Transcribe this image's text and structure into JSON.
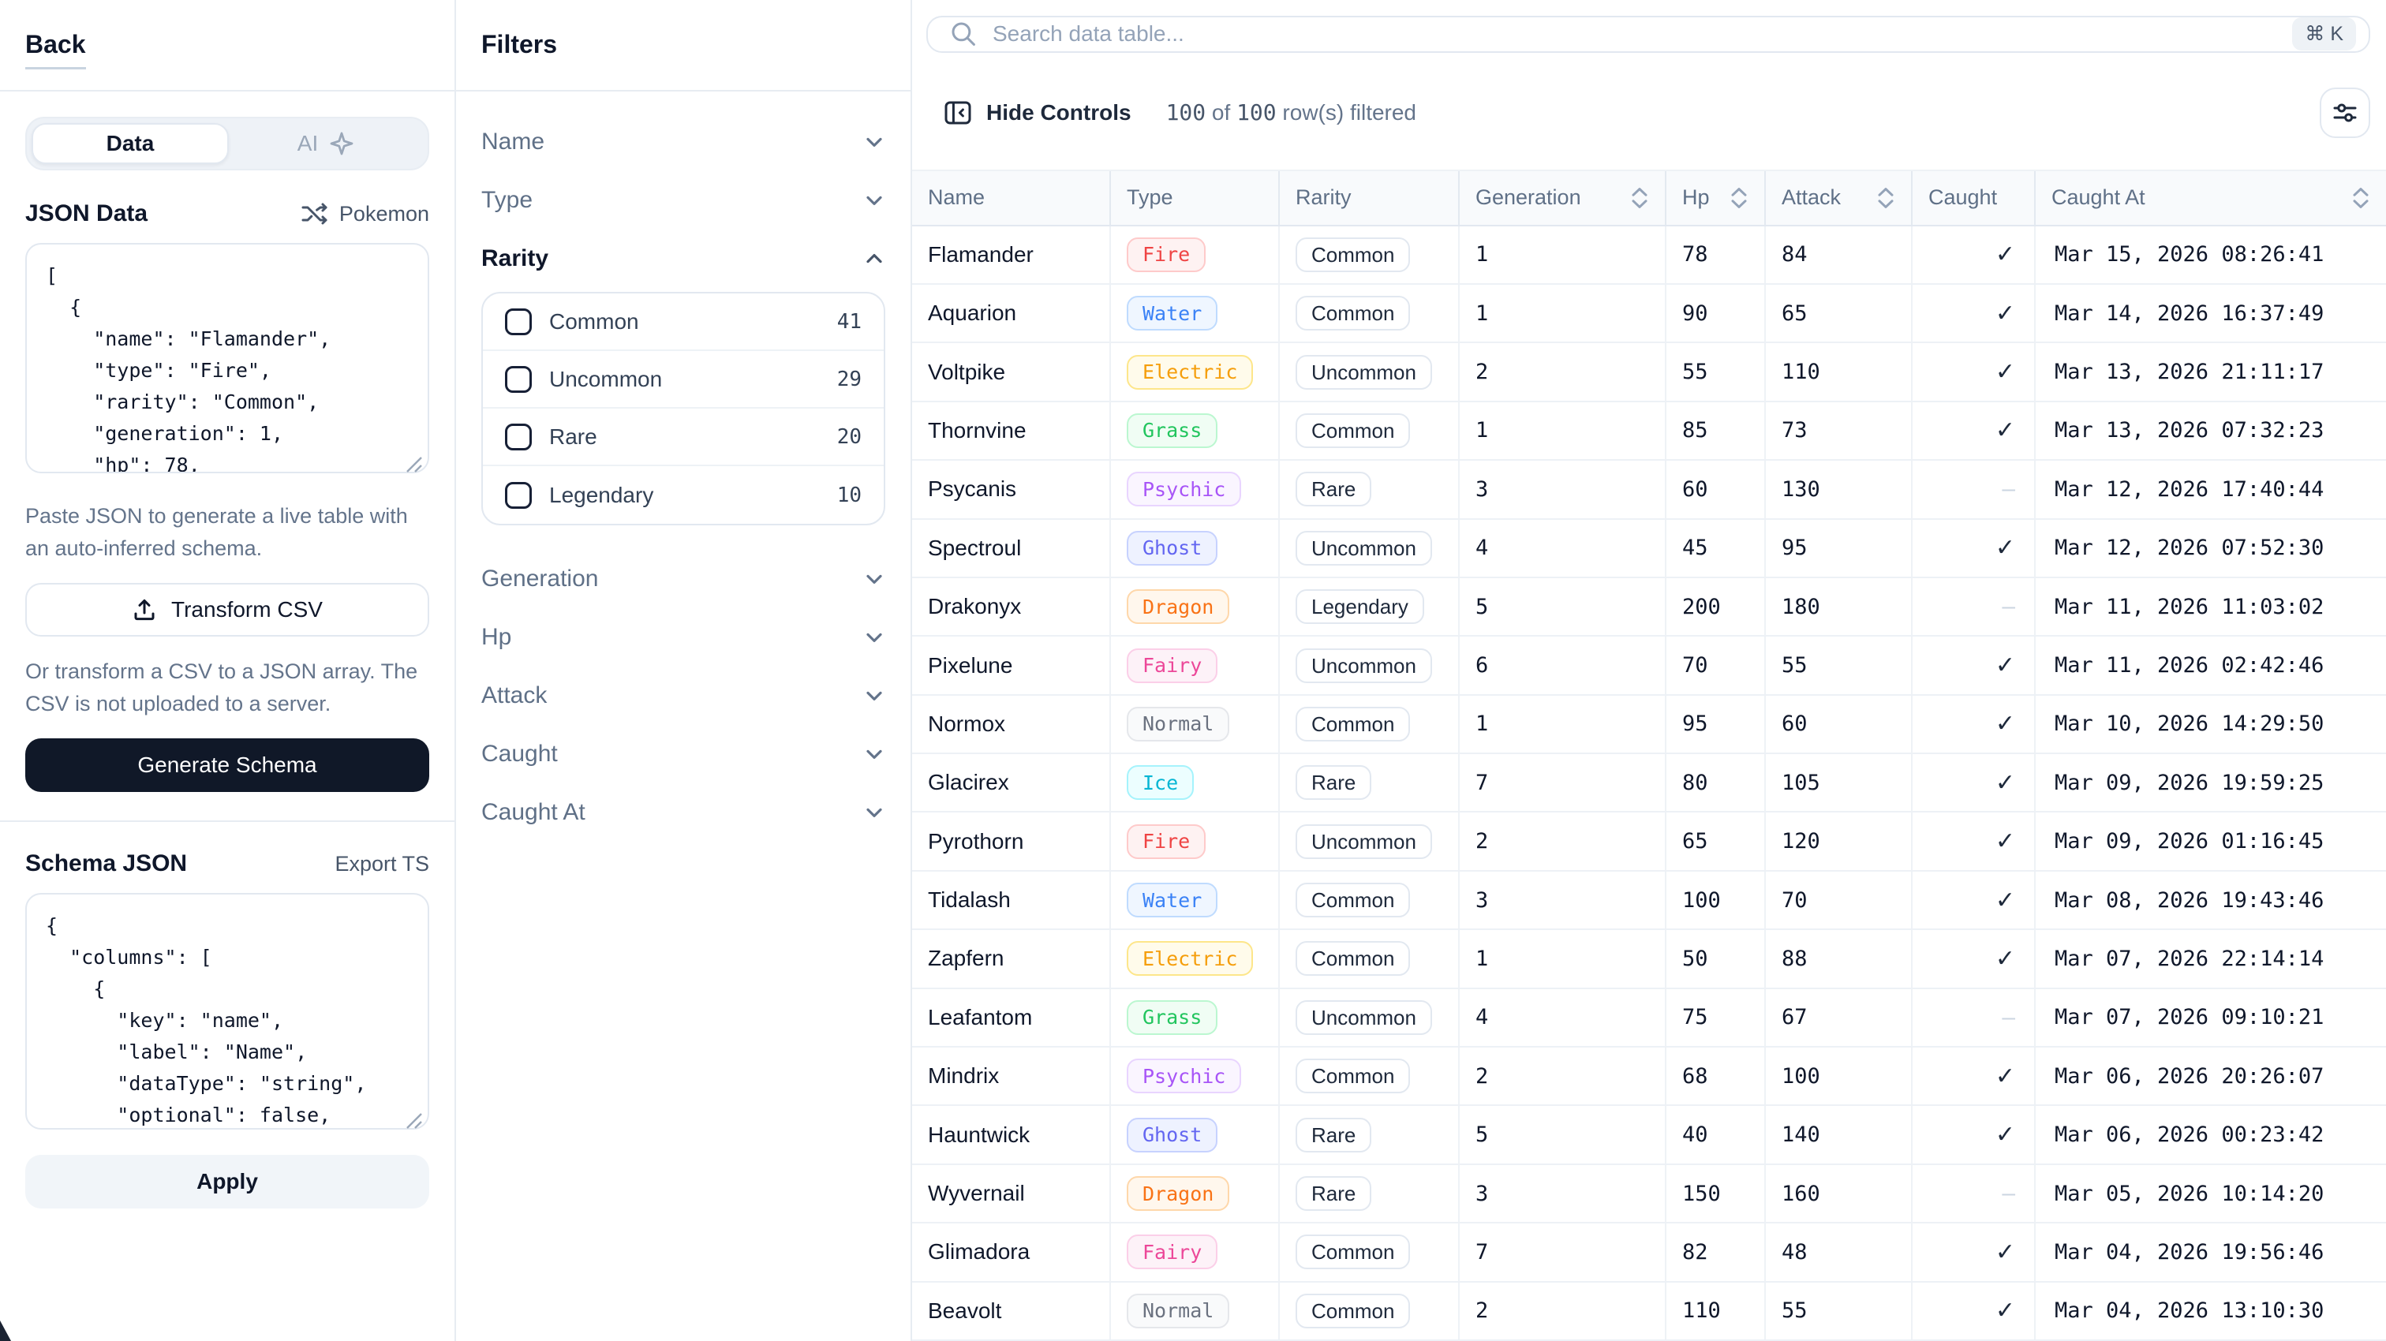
{
  "left_panel": {
    "back_label": "Back",
    "tabs": {
      "data": "Data",
      "ai": "AI"
    },
    "json_data_label": "JSON Data",
    "dataset_label": "Pokemon",
    "json_textarea": "[\n  {\n    \"name\": \"Flamander\",\n    \"type\": \"Fire\",\n    \"rarity\": \"Common\",\n    \"generation\": 1,\n    \"hp\": 78,",
    "paste_help": "Paste JSON to generate a live table with an auto-inferred schema.",
    "transform_csv_label": "Transform CSV",
    "csv_help": "Or transform a CSV to a JSON array. The CSV is not uploaded to a server.",
    "generate_schema_label": "Generate Schema",
    "schema_json_label": "Schema JSON",
    "export_ts_label": "Export TS",
    "schema_textarea": "{\n  \"columns\": [\n    {\n      \"key\": \"name\",\n      \"label\": \"Name\",\n      \"dataType\": \"string\",\n      \"optional\": false,",
    "apply_label": "Apply"
  },
  "filters": {
    "title": "Filters",
    "sections_top": [
      {
        "label": "Name"
      },
      {
        "label": "Type"
      }
    ],
    "rarity": {
      "label": "Rarity",
      "options": [
        {
          "label": "Common",
          "count": "41"
        },
        {
          "label": "Uncommon",
          "count": "29"
        },
        {
          "label": "Rare",
          "count": "20"
        },
        {
          "label": "Legendary",
          "count": "10"
        }
      ]
    },
    "sections_bottom": [
      {
        "label": "Generation"
      },
      {
        "label": "Hp"
      },
      {
        "label": "Attack"
      },
      {
        "label": "Caught"
      },
      {
        "label": "Caught At"
      }
    ]
  },
  "toolbar": {
    "search_placeholder": "Search data table...",
    "shortcut": "⌘ K",
    "hide_controls_label": "Hide Controls",
    "status": {
      "filtered": "100",
      "of": "of",
      "total": "100",
      "suffix": "row(s) filtered"
    }
  },
  "table": {
    "columns": [
      {
        "label": "Name",
        "sortable": false
      },
      {
        "label": "Type",
        "sortable": false
      },
      {
        "label": "Rarity",
        "sortable": false
      },
      {
        "label": "Generation",
        "sortable": true
      },
      {
        "label": "Hp",
        "sortable": true
      },
      {
        "label": "Attack",
        "sortable": true
      },
      {
        "label": "Caught",
        "sortable": false
      },
      {
        "label": "Caught At",
        "sortable": true
      }
    ],
    "rows": [
      {
        "name": "Flamander",
        "type": "Fire",
        "rarity": "Common",
        "generation": "1",
        "hp": "78",
        "attack": "84",
        "caught": true,
        "caught_at": "Mar 15, 2026 08:26:41"
      },
      {
        "name": "Aquarion",
        "type": "Water",
        "rarity": "Common",
        "generation": "1",
        "hp": "90",
        "attack": "65",
        "caught": true,
        "caught_at": "Mar 14, 2026 16:37:49"
      },
      {
        "name": "Voltpike",
        "type": "Electric",
        "rarity": "Uncommon",
        "generation": "2",
        "hp": "55",
        "attack": "110",
        "caught": true,
        "caught_at": "Mar 13, 2026 21:11:17"
      },
      {
        "name": "Thornvine",
        "type": "Grass",
        "rarity": "Common",
        "generation": "1",
        "hp": "85",
        "attack": "73",
        "caught": true,
        "caught_at": "Mar 13, 2026 07:32:23"
      },
      {
        "name": "Psycanis",
        "type": "Psychic",
        "rarity": "Rare",
        "generation": "3",
        "hp": "60",
        "attack": "130",
        "caught": false,
        "caught_at": "Mar 12, 2026 17:40:44"
      },
      {
        "name": "Spectroul",
        "type": "Ghost",
        "rarity": "Uncommon",
        "generation": "4",
        "hp": "45",
        "attack": "95",
        "caught": true,
        "caught_at": "Mar 12, 2026 07:52:30"
      },
      {
        "name": "Drakonyx",
        "type": "Dragon",
        "rarity": "Legendary",
        "generation": "5",
        "hp": "200",
        "attack": "180",
        "caught": false,
        "caught_at": "Mar 11, 2026 11:03:02"
      },
      {
        "name": "Pixelune",
        "type": "Fairy",
        "rarity": "Uncommon",
        "generation": "6",
        "hp": "70",
        "attack": "55",
        "caught": true,
        "caught_at": "Mar 11, 2026 02:42:46"
      },
      {
        "name": "Normox",
        "type": "Normal",
        "rarity": "Common",
        "generation": "1",
        "hp": "95",
        "attack": "60",
        "caught": true,
        "caught_at": "Mar 10, 2026 14:29:50"
      },
      {
        "name": "Glacirex",
        "type": "Ice",
        "rarity": "Rare",
        "generation": "7",
        "hp": "80",
        "attack": "105",
        "caught": true,
        "caught_at": "Mar 09, 2026 19:59:25"
      },
      {
        "name": "Pyrothorn",
        "type": "Fire",
        "rarity": "Uncommon",
        "generation": "2",
        "hp": "65",
        "attack": "120",
        "caught": true,
        "caught_at": "Mar 09, 2026 01:16:45"
      },
      {
        "name": "Tidalash",
        "type": "Water",
        "rarity": "Common",
        "generation": "3",
        "hp": "100",
        "attack": "70",
        "caught": true,
        "caught_at": "Mar 08, 2026 19:43:46"
      },
      {
        "name": "Zapfern",
        "type": "Electric",
        "rarity": "Common",
        "generation": "1",
        "hp": "50",
        "attack": "88",
        "caught": true,
        "caught_at": "Mar 07, 2026 22:14:14"
      },
      {
        "name": "Leafantom",
        "type": "Grass",
        "rarity": "Uncommon",
        "generation": "4",
        "hp": "75",
        "attack": "67",
        "caught": false,
        "caught_at": "Mar 07, 2026 09:10:21"
      },
      {
        "name": "Mindrix",
        "type": "Psychic",
        "rarity": "Common",
        "generation": "2",
        "hp": "68",
        "attack": "100",
        "caught": true,
        "caught_at": "Mar 06, 2026 20:26:07"
      },
      {
        "name": "Hauntwick",
        "type": "Ghost",
        "rarity": "Rare",
        "generation": "5",
        "hp": "40",
        "attack": "140",
        "caught": true,
        "caught_at": "Mar 06, 2026 00:23:42"
      },
      {
        "name": "Wyvernail",
        "type": "Dragon",
        "rarity": "Rare",
        "generation": "3",
        "hp": "150",
        "attack": "160",
        "caught": false,
        "caught_at": "Mar 05, 2026 10:14:20"
      },
      {
        "name": "Glimadora",
        "type": "Fairy",
        "rarity": "Common",
        "generation": "7",
        "hp": "82",
        "attack": "48",
        "caught": true,
        "caught_at": "Mar 04, 2026 19:56:46"
      },
      {
        "name": "Beavolt",
        "type": "Normal",
        "rarity": "Common",
        "generation": "2",
        "hp": "110",
        "attack": "55",
        "caught": true,
        "caught_at": "Mar 04, 2026 13:10:30"
      }
    ]
  },
  "type_colors": {
    "Fire": {
      "bg": "#fef2f2",
      "border": "#fecaca",
      "text": "#ef4444"
    },
    "Water": {
      "bg": "#eff6ff",
      "border": "#bfdbfe",
      "text": "#3b82f6"
    },
    "Electric": {
      "bg": "#fffbeb",
      "border": "#fde68a",
      "text": "#f59e0b"
    },
    "Grass": {
      "bg": "#f0fdf4",
      "border": "#bbf7d0",
      "text": "#22c55e"
    },
    "Psychic": {
      "bg": "#faf5ff",
      "border": "#e9d5ff",
      "text": "#a855f7"
    },
    "Ghost": {
      "bg": "#eef2ff",
      "border": "#c7d2fe",
      "text": "#6366f1"
    },
    "Dragon": {
      "bg": "#fff7ed",
      "border": "#fed7aa",
      "text": "#f97316"
    },
    "Fairy": {
      "bg": "#fdf2f8",
      "border": "#fbcfe8",
      "text": "#ec4899"
    },
    "Normal": {
      "bg": "#f9fafb",
      "border": "#e5e7eb",
      "text": "#6b7280"
    },
    "Ice": {
      "bg": "#ecfeff",
      "border": "#a5f3fc",
      "text": "#06b6d4"
    }
  },
  "colors": {
    "accent_dark": "#101828",
    "ink": "#0f172a",
    "slate": "#64748b",
    "line": "#e2e8f0"
  }
}
